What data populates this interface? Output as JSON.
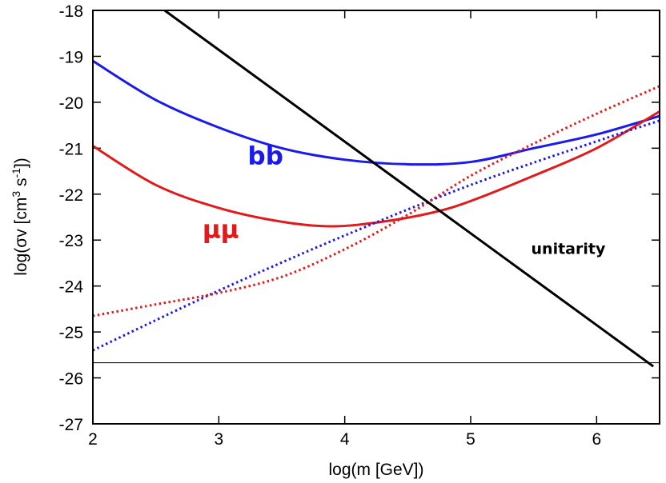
{
  "chart_data": {
    "type": "line",
    "title": "",
    "xlabel": "log(m [GeV])",
    "ylabel": {
      "prefix": "log(σv [cm",
      "cm_exp": "3",
      "mid": " s",
      "s_exp": "-1",
      "suffix": "])"
    },
    "xlim": [
      2,
      6.5
    ],
    "ylim": [
      -27,
      -18
    ],
    "x_ticks": [
      2,
      3,
      4,
      5,
      6
    ],
    "y_ticks": [
      -27,
      -26,
      -25,
      -24,
      -23,
      -22,
      -21,
      -20,
      -19,
      -18
    ],
    "series": [
      {
        "name": "bb",
        "label": "bb",
        "style": "solid",
        "color": "#1a1aee",
        "x": [
          2.0,
          2.5,
          3.0,
          3.5,
          4.0,
          4.5,
          5.0,
          5.5,
          6.0,
          6.5
        ],
        "y": [
          -19.1,
          -19.95,
          -20.55,
          -21.0,
          -21.25,
          -21.35,
          -21.3,
          -21.0,
          -20.7,
          -20.3
        ]
      },
      {
        "name": "mumu",
        "label": "μμ",
        "style": "solid",
        "color": "#e31a1c",
        "x": [
          2.0,
          2.5,
          3.0,
          3.5,
          3.9,
          4.3,
          4.7,
          5.0,
          5.5,
          6.0,
          6.5
        ],
        "y": [
          -20.95,
          -21.8,
          -22.3,
          -22.6,
          -22.7,
          -22.6,
          -22.4,
          -22.15,
          -21.6,
          -21.0,
          -20.2
        ]
      },
      {
        "name": "bb-dotted",
        "label": "",
        "style": "dotted",
        "color": "#1a1aee",
        "x": [
          2.0,
          3.0,
          4.0,
          5.0,
          6.0,
          6.5
        ],
        "y": [
          -25.4,
          -24.1,
          -22.9,
          -21.8,
          -20.85,
          -20.4
        ]
      },
      {
        "name": "mumu-dotted",
        "label": "",
        "style": "dotted",
        "color": "#e31a1c",
        "x": [
          2.0,
          2.5,
          3.0,
          3.5,
          4.0,
          4.5,
          5.0,
          5.5,
          6.0,
          6.5
        ],
        "y": [
          -24.65,
          -24.4,
          -24.15,
          -23.8,
          -23.2,
          -22.45,
          -21.6,
          -20.9,
          -20.25,
          -19.65
        ]
      },
      {
        "name": "unitarity",
        "label": "unitarity",
        "style": "solid",
        "color": "#000000",
        "x": [
          2.57,
          6.45
        ],
        "y": [
          -18.0,
          -25.75
        ]
      },
      {
        "name": "horizontal-limit",
        "label": "",
        "style": "thin",
        "color": "#000000",
        "x": [
          2.0,
          6.5
        ],
        "y": [
          -25.67,
          -25.67
        ]
      }
    ],
    "annotations": [
      {
        "name": "bb-annotation",
        "text": "bb",
        "x": 3.23,
        "y": -21.35,
        "color": "#1a1aee",
        "size": "large"
      },
      {
        "name": "mumu-annotation",
        "text": "μμ",
        "x": 2.87,
        "y": -22.95,
        "color": "#e31a1c",
        "size": "large"
      },
      {
        "name": "unitarity-annotation",
        "text": "unitarity",
        "x": 5.48,
        "y": -23.3,
        "color": "#000000",
        "size": "small"
      }
    ]
  }
}
